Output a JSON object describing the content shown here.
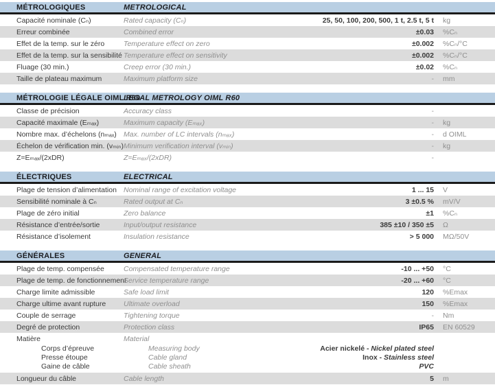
{
  "colors": {
    "section_header_bg": "#b9cfe3",
    "section_header_text": "#1c1e22",
    "header_rule": "#1a1a1a",
    "row_stripe": "#dcdcdc",
    "label_fr": "#3a3a3a",
    "label_en": "#8f8f8f",
    "value": "#3a3a3a",
    "unit": "#8f8f8f"
  },
  "sections": [
    {
      "title_fr": "MÉTROLOGIQUES",
      "title_en": "METROLOGICAL",
      "rows": [
        {
          "fr": "Capacité nominale (Cₙ)",
          "en": "Rated capacity (Cₙ)",
          "value": "25, 50, 100, 200, 500, 1 t, 2.5 t, 5 t",
          "unit": "kg"
        },
        {
          "fr": "Erreur combinée",
          "en": "Combined error",
          "value": "±0.03",
          "unit": "%Cₙ"
        },
        {
          "fr": "Effet de la temp. sur le zéro",
          "en": "Temperature effect on zero",
          "value": "±0.002",
          "unit": "%Cₙ/°C"
        },
        {
          "fr": "Effet de la temp. sur la sensibilité",
          "en": "Temperature effect on sensitivity",
          "value": "±0.002",
          "unit": "%Cₙ/°C"
        },
        {
          "fr": "Fluage (30 min.)",
          "en": "Creep error (30 min.)",
          "value": "±0.02",
          "unit": "%Cₙ"
        },
        {
          "fr": "Taille de plateau maximum",
          "en": "Maximum platform size",
          "value": "-",
          "unit": "mm"
        }
      ]
    },
    {
      "title_fr": "MÉTROLOGIE LÉGALE OIML R60",
      "title_en": "LEGAL METROLOGY OIML R60",
      "rows": [
        {
          "fr": "Classe de précision",
          "en": "Accuracy class",
          "value": "-",
          "unit": ""
        },
        {
          "fr": "Capacité maximale (Eₘₐₓ)",
          "en": "Maximum capacity (Eₘₐₓ)",
          "value": "-",
          "unit": "kg"
        },
        {
          "fr": "Nombre max. d’échelons (nₘₐₓ)",
          "en": "Max. number of LC intervals (nₘₐₓ)",
          "value": "-",
          "unit": "d OIML"
        },
        {
          "fr": "Échelon de vérification min. (vₘᵢₙ)",
          "en": "Minimum verification interval (vₘᵢₙ)",
          "value": "-",
          "unit": "kg"
        },
        {
          "fr": "Z=Eₘₐₓ/(2xDR)",
          "en": "Z=Eₘₐₓ/(2xDR)",
          "value": "-",
          "unit": ""
        }
      ]
    },
    {
      "title_fr": "ÉLECTRIQUES",
      "title_en": "ELECTRICAL",
      "rows": [
        {
          "fr": "Plage de tension d’alimentation",
          "en": "Nominal range of excitation voltage",
          "value": "1 ... 15",
          "unit": "V"
        },
        {
          "fr": "Sensibilité nominale à Cₙ",
          "en": "Rated output at Cₙ",
          "value": "3 ±0.5 %",
          "unit": "mV/V"
        },
        {
          "fr": "Plage de zéro initial",
          "en": "Zero balance",
          "value": "±1",
          "unit": "%Cₙ"
        },
        {
          "fr": "Résistance d’entrée/sortie",
          "en": "Input/output resistance",
          "value": "385 ±10 / 350 ±5",
          "unit": "Ω"
        },
        {
          "fr": "Résistance d’isolement",
          "en": "Insulation resistance",
          "value": "> 5 000",
          "unit": "MΩ/50V"
        }
      ]
    },
    {
      "title_fr": "GÉNÉRALES",
      "title_en": "GENERAL",
      "rows": [
        {
          "fr": "Plage de temp. compensée",
          "en": "Compensated temperature range",
          "value": "-10 ... +50",
          "unit": "°C"
        },
        {
          "fr": "Plage de temp. de fonctionnement",
          "en": "Service temperature range",
          "value": "-20 ... +60",
          "unit": "°C"
        },
        {
          "fr": "Charge limite admissible",
          "en": "Safe load limit",
          "value": "120",
          "unit": "%Emax"
        },
        {
          "fr": "Charge ultime avant rupture",
          "en": "Ultimate overload",
          "value": "150",
          "unit": "%Emax"
        },
        {
          "fr": "Couple de serrage",
          "en": "Tightening torque",
          "value": "-",
          "unit": "Nm"
        },
        {
          "fr": "Degré de protection",
          "en": "Protection class",
          "value": "IP65",
          "unit": "EN 60529"
        },
        {
          "fr": "Matière",
          "en": "Material",
          "sub_rows": [
            {
              "fr": "Corps d’épreuve",
              "en": "Measuring body",
              "value_plain": "Acier nickelé - ",
              "value_italic": "Nickel plated steel"
            },
            {
              "fr": "Presse étoupe",
              "en": "Cable gland",
              "value_plain": "Inox - ",
              "value_italic": "Stainless steel"
            },
            {
              "fr": "Gaine de câble",
              "en": "Cable sheath",
              "value_plain": "",
              "value_italic": "PVC"
            }
          ]
        },
        {
          "fr": "Longueur du câble",
          "en": "Cable length",
          "value": "5",
          "unit": "m"
        }
      ]
    }
  ]
}
